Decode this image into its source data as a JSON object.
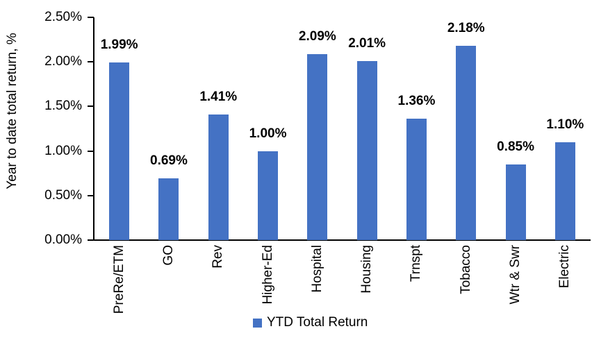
{
  "chart_data": {
    "type": "bar",
    "title": "",
    "categories": [
      "PreRe/ETM",
      "GO",
      "Rev",
      "Higher-Ed",
      "Hospital",
      "Housing",
      "Trnspt",
      "Tobacco",
      "Wtr & Swr",
      "Electric"
    ],
    "series": [
      {
        "name": "YTD Total Return",
        "values": [
          1.99,
          0.69,
          1.41,
          1.0,
          2.09,
          2.01,
          1.36,
          2.18,
          0.85,
          1.1
        ]
      }
    ],
    "data_labels": [
      "1.99%",
      "0.69%",
      "1.41%",
      "1.00%",
      "2.09%",
      "2.01%",
      "1.36%",
      "2.18%",
      "0.85%",
      "1.10%"
    ],
    "xlabel": "",
    "ylabel": "Year to date total return, %",
    "ylim": [
      0,
      2.5
    ],
    "ytick_step": 0.5,
    "ytick_labels": [
      "0.00%",
      "0.50%",
      "1.00%",
      "1.50%",
      "2.00%",
      "2.50%"
    ],
    "grid": false,
    "legend": {
      "position": "bottom-center",
      "entries": [
        {
          "label": "YTD Total Return",
          "color": "#4472C4"
        }
      ]
    },
    "colors": {
      "bar": "#4472C4",
      "axis": "#000000",
      "text": "#000000",
      "background": "#FFFFFF"
    }
  }
}
